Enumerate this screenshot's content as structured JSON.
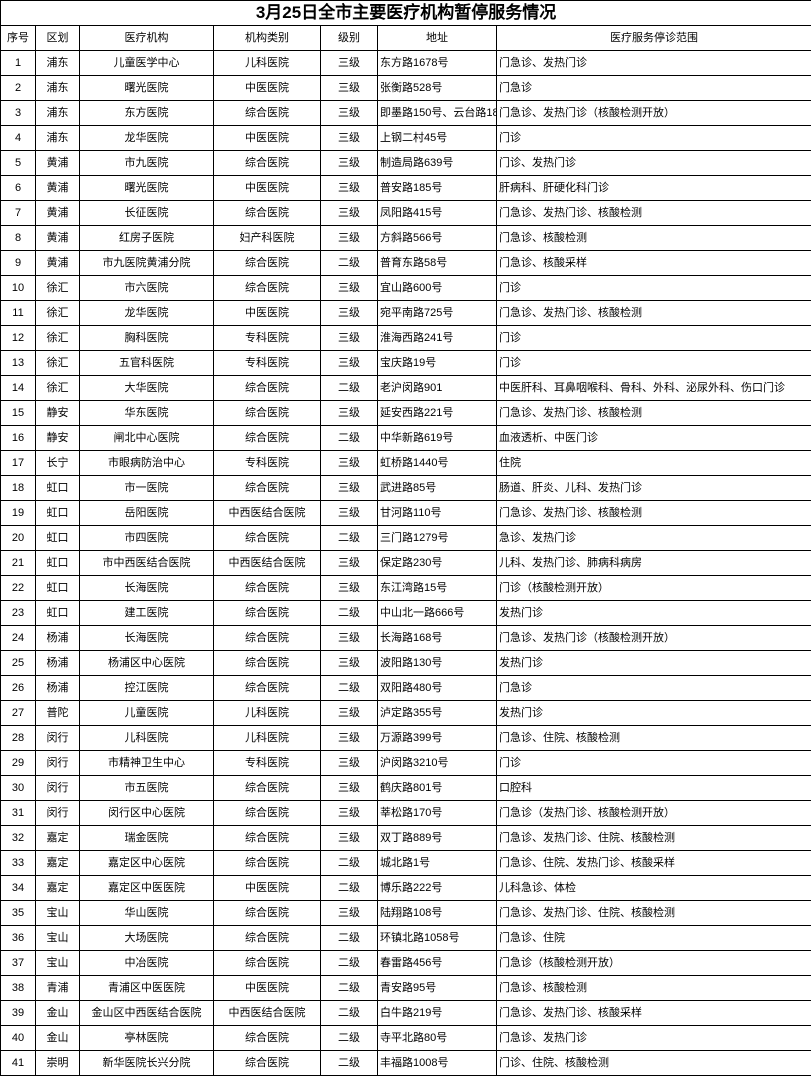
{
  "title": "3月25日全市主要医疗机构暂停服务情况",
  "headers": [
    "序号",
    "区划",
    "医疗机构",
    "机构类别",
    "级别",
    "地址",
    "医疗服务停诊范围"
  ],
  "rows": [
    [
      "1",
      "浦东",
      "儿童医学中心",
      "儿科医院",
      "三级",
      "东方路1678号",
      "门急诊、发热门诊"
    ],
    [
      "2",
      "浦东",
      "曙光医院",
      "中医医院",
      "三级",
      "张衡路528号",
      "门急诊"
    ],
    [
      "3",
      "浦东",
      "东方医院",
      "综合医院",
      "三级",
      "即墨路150号、云台路18",
      "门急诊、发热门诊（核酸检测开放）"
    ],
    [
      "4",
      "浦东",
      "龙华医院",
      "中医医院",
      "三级",
      "上钢二村45号",
      "门诊"
    ],
    [
      "5",
      "黄浦",
      "市九医院",
      "综合医院",
      "三级",
      "制造局路639号",
      "门诊、发热门诊"
    ],
    [
      "6",
      "黄浦",
      "曙光医院",
      "中医医院",
      "三级",
      "普安路185号",
      "肝病科、肝硬化科门诊"
    ],
    [
      "7",
      "黄浦",
      "长征医院",
      "综合医院",
      "三级",
      "凤阳路415号",
      "门急诊、发热门诊、核酸检测"
    ],
    [
      "8",
      "黄浦",
      "红房子医院",
      "妇产科医院",
      "三级",
      "方斜路566号",
      "门急诊、核酸检测"
    ],
    [
      "9",
      "黄浦",
      "市九医院黄浦分院",
      "综合医院",
      "二级",
      "普育东路58号",
      "门急诊、核酸采样"
    ],
    [
      "10",
      "徐汇",
      "市六医院",
      "综合医院",
      "三级",
      "宜山路600号",
      "门诊"
    ],
    [
      "11",
      "徐汇",
      "龙华医院",
      "中医医院",
      "三级",
      "宛平南路725号",
      "门急诊、发热门诊、核酸检测"
    ],
    [
      "12",
      "徐汇",
      "胸科医院",
      "专科医院",
      "三级",
      "淮海西路241号",
      "门诊"
    ],
    [
      "13",
      "徐汇",
      "五官科医院",
      "专科医院",
      "三级",
      "宝庆路19号",
      "门诊"
    ],
    [
      "14",
      "徐汇",
      "大华医院",
      "综合医院",
      "二级",
      "老沪闵路901",
      "中医肝科、耳鼻咽喉科、骨科、外科、泌尿外科、伤口门诊"
    ],
    [
      "15",
      "静安",
      "华东医院",
      "综合医院",
      "三级",
      "延安西路221号",
      "门急诊、发热门诊、核酸检测"
    ],
    [
      "16",
      "静安",
      "闸北中心医院",
      "综合医院",
      "二级",
      "中华新路619号",
      "血液透析、中医门诊"
    ],
    [
      "17",
      "长宁",
      "市眼病防治中心",
      "专科医院",
      "三级",
      "虹桥路1440号",
      "住院"
    ],
    [
      "18",
      "虹口",
      "市一医院",
      "综合医院",
      "三级",
      "武进路85号",
      "肠道、肝炎、儿科、发热门诊"
    ],
    [
      "19",
      "虹口",
      "岳阳医院",
      "中西医结合医院",
      "三级",
      "甘河路110号",
      "门急诊、发热门诊、核酸检测"
    ],
    [
      "20",
      "虹口",
      "市四医院",
      "综合医院",
      "二级",
      "三门路1279号",
      "急诊、发热门诊"
    ],
    [
      "21",
      "虹口",
      "市中西医结合医院",
      "中西医结合医院",
      "三级",
      "保定路230号",
      "儿科、发热门诊、肺病科病房"
    ],
    [
      "22",
      "虹口",
      "长海医院",
      "综合医院",
      "三级",
      "东江湾路15号",
      "门诊（核酸检测开放）"
    ],
    [
      "23",
      "虹口",
      "建工医院",
      "综合医院",
      "二级",
      "中山北一路666号",
      "发热门诊"
    ],
    [
      "24",
      "杨浦",
      "长海医院",
      "综合医院",
      "三级",
      "长海路168号",
      "门急诊、发热门诊（核酸检测开放）"
    ],
    [
      "25",
      "杨浦",
      "杨浦区中心医院",
      "综合医院",
      "三级",
      "波阳路130号",
      "发热门诊"
    ],
    [
      "26",
      "杨浦",
      "控江医院",
      "综合医院",
      "二级",
      "双阳路480号",
      "门急诊"
    ],
    [
      "27",
      "普陀",
      "儿童医院",
      "儿科医院",
      "三级",
      "泸定路355号",
      "发热门诊"
    ],
    [
      "28",
      "闵行",
      "儿科医院",
      "儿科医院",
      "三级",
      "万源路399号",
      "门急诊、住院、核酸检测"
    ],
    [
      "29",
      "闵行",
      "市精神卫生中心",
      "专科医院",
      "三级",
      "沪闵路3210号",
      "门诊"
    ],
    [
      "30",
      "闵行",
      "市五医院",
      "综合医院",
      "三级",
      "鹤庆路801号",
      "口腔科"
    ],
    [
      "31",
      "闵行",
      "闵行区中心医院",
      "综合医院",
      "三级",
      "莘松路170号",
      "门急诊（发热门诊、核酸检测开放）"
    ],
    [
      "32",
      "嘉定",
      "瑞金医院",
      "综合医院",
      "三级",
      "双丁路889号",
      "门急诊、发热门诊、住院、核酸检测"
    ],
    [
      "33",
      "嘉定",
      "嘉定区中心医院",
      "综合医院",
      "二级",
      "城北路1号",
      "门急诊、住院、发热门诊、核酸采样"
    ],
    [
      "34",
      "嘉定",
      "嘉定区中医医院",
      "中医医院",
      "二级",
      "博乐路222号",
      "儿科急诊、体检"
    ],
    [
      "35",
      "宝山",
      "华山医院",
      "综合医院",
      "三级",
      "陆翔路108号",
      "门急诊、发热门诊、住院、核酸检测"
    ],
    [
      "36",
      "宝山",
      "大场医院",
      "综合医院",
      "二级",
      "环镇北路1058号",
      "门急诊、住院"
    ],
    [
      "37",
      "宝山",
      "中冶医院",
      "综合医院",
      "二级",
      "春雷路456号",
      "门急诊（核酸检测开放）"
    ],
    [
      "38",
      "青浦",
      "青浦区中医医院",
      "中医医院",
      "二级",
      "青安路95号",
      "门急诊、核酸检测"
    ],
    [
      "39",
      "金山",
      "金山区中西医结合医院",
      "中西医结合医院",
      "二级",
      "白牛路219号",
      "门急诊、发热门诊、核酸采样"
    ],
    [
      "40",
      "金山",
      "亭林医院",
      "综合医院",
      "二级",
      "寺平北路80号",
      "门急诊、发热门诊"
    ],
    [
      "41",
      "崇明",
      "新华医院长兴分院",
      "综合医院",
      "二级",
      "丰福路1008号",
      "门诊、住院、核酸检测"
    ]
  ]
}
